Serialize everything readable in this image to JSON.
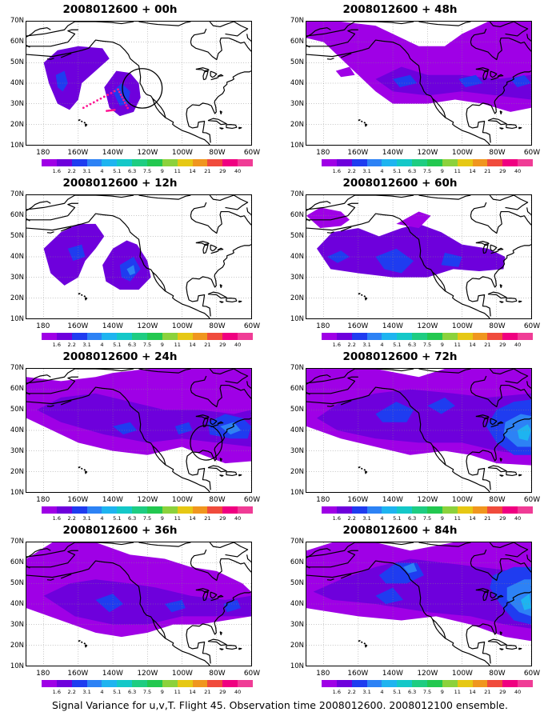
{
  "colorbar": {
    "labels": [
      "1.6",
      "2.2",
      "3.1",
      "4",
      "5.1",
      "6.3",
      "7.5",
      "9",
      "11",
      "14",
      "21",
      "29",
      "40"
    ],
    "colors": [
      "#9f00e6",
      "#6e00dc",
      "#1f3cf0",
      "#2d82f5",
      "#1eb4f0",
      "#14c8c8",
      "#1ecd82",
      "#23c850",
      "#8cd23c",
      "#e6c814",
      "#f0961e",
      "#f04b3c",
      "#f00080",
      "#f03c96"
    ]
  },
  "axes": {
    "y_labels": [
      "70N",
      "60N",
      "50N",
      "40N",
      "30N",
      "20N",
      "10N"
    ],
    "x_labels": [
      "180",
      "160W",
      "140W",
      "120W",
      "100W",
      "80W",
      "60W"
    ]
  },
  "panels": [
    {
      "title": "2008012600 + 00h",
      "has_circle": true,
      "has_track": true
    },
    {
      "title": "2008012600 + 48h",
      "has_circle": false,
      "has_track": false
    },
    {
      "title": "2008012600 + 12h",
      "has_circle": false,
      "has_track": false
    },
    {
      "title": "2008012600 + 60h",
      "has_circle": false,
      "has_track": false
    },
    {
      "title": "2008012600 + 24h",
      "has_circle": true,
      "has_track": false
    },
    {
      "title": "2008012600 + 72h",
      "has_circle": false,
      "has_track": false
    },
    {
      "title": "2008012600 + 36h",
      "has_circle": false,
      "has_track": false
    },
    {
      "title": "2008012600 + 84h",
      "has_circle": false,
      "has_track": false
    }
  ],
  "footer": "Signal Variance for u,v,T. Flight 45. Observation time 2008012600. 2008012100 ensemble."
}
